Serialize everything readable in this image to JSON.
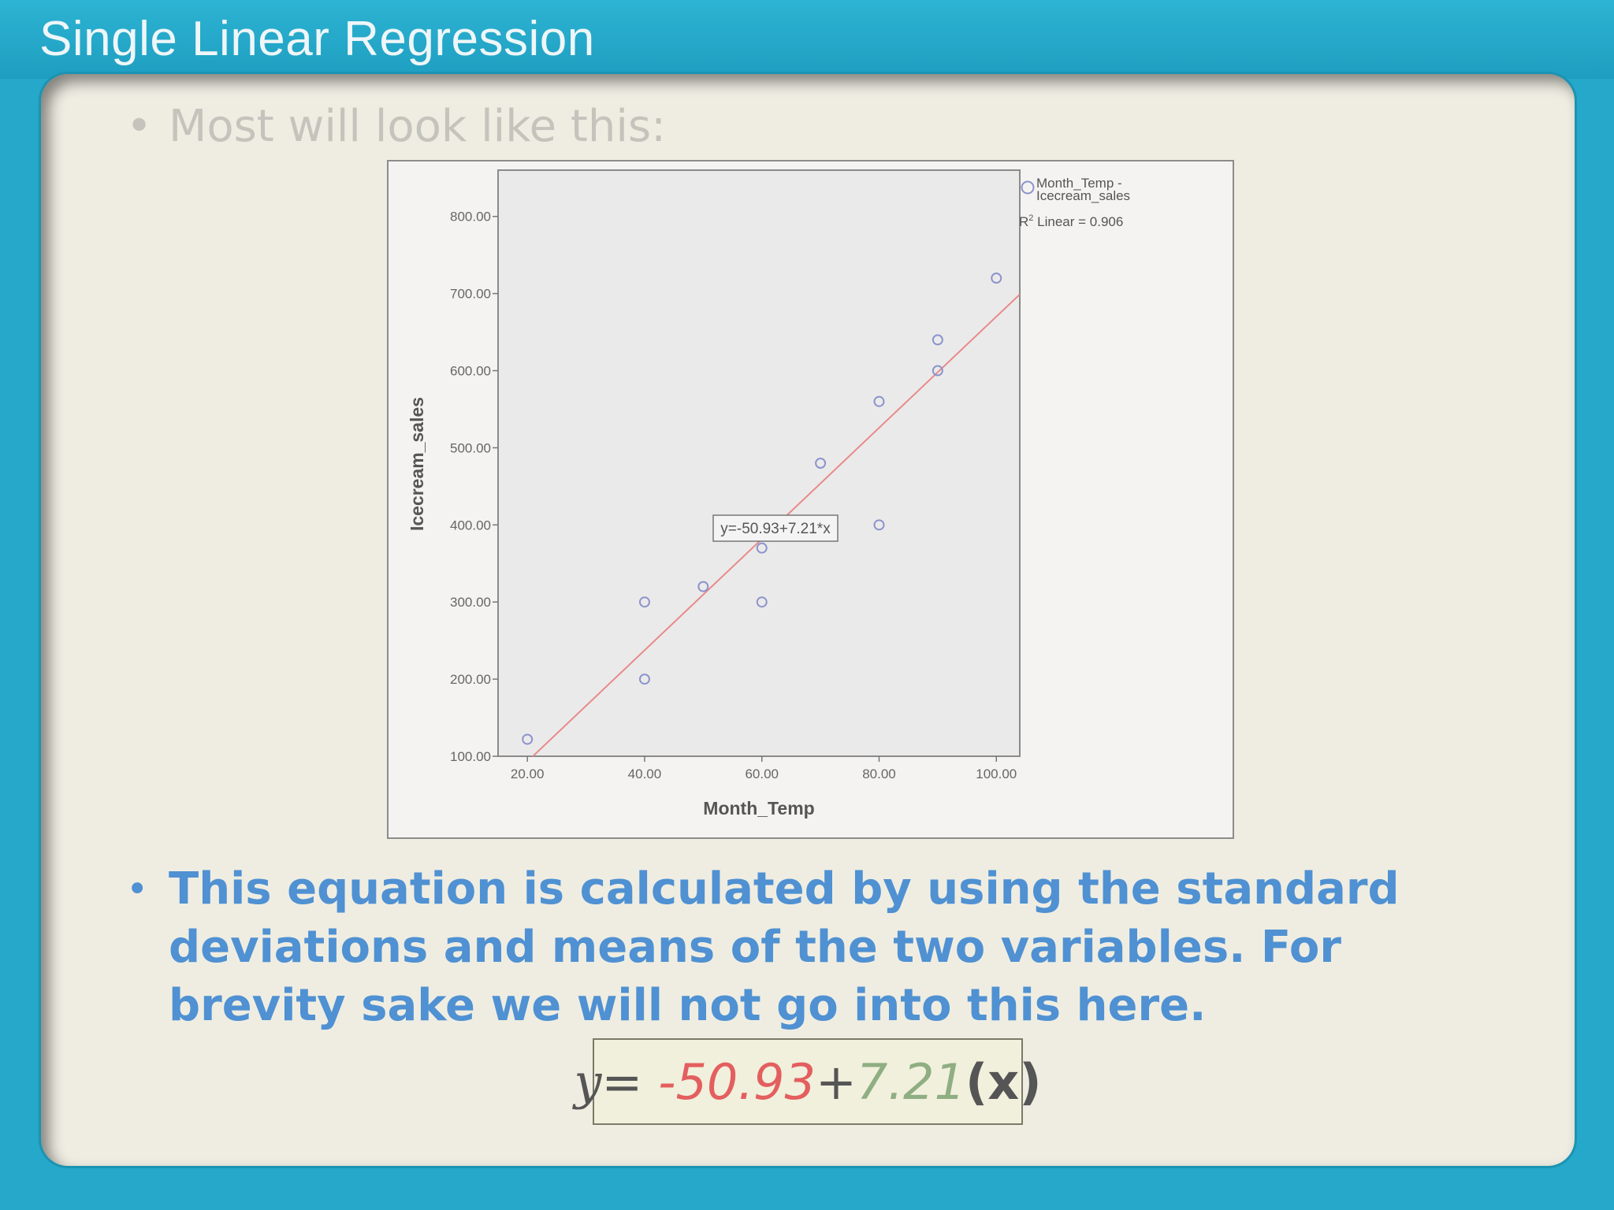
{
  "slide": {
    "title": "Single Linear Regression",
    "bullet1": "Most will look like this:",
    "bullet2": "This equation is calculated by using the standard deviations and means of the two variables.  For brevity sake we will not go into this here.",
    "bullet_glyph": "•"
  },
  "equation": {
    "y": "y",
    "equals": "=",
    "intercept": " -50.93",
    "plus": "+",
    "slope": "7.21",
    "x": "(x)"
  },
  "chart_data": {
    "type": "scatter",
    "xlabel": "Month_Temp",
    "ylabel": "Icecream_sales",
    "xlim": [
      15,
      104
    ],
    "ylim": [
      100,
      860
    ],
    "x_ticks": [
      20,
      40,
      60,
      80,
      100
    ],
    "x_tick_labels": [
      "20.00",
      "40.00",
      "60.00",
      "80.00",
      "100.00"
    ],
    "y_ticks": [
      100,
      200,
      300,
      400,
      500,
      600,
      700,
      800
    ],
    "y_tick_labels": [
      "100.00",
      "200.00",
      "300.00",
      "400.00",
      "500.00",
      "600.00",
      "700.00",
      "800.00"
    ],
    "points": [
      {
        "x": 20,
        "y": 122
      },
      {
        "x": 40,
        "y": 200
      },
      {
        "x": 40,
        "y": 300
      },
      {
        "x": 50,
        "y": 320
      },
      {
        "x": 60,
        "y": 300
      },
      {
        "x": 60,
        "y": 370
      },
      {
        "x": 70,
        "y": 480
      },
      {
        "x": 80,
        "y": 400
      },
      {
        "x": 80,
        "y": 560
      },
      {
        "x": 90,
        "y": 600
      },
      {
        "x": 90,
        "y": 640
      },
      {
        "x": 100,
        "y": 720
      }
    ],
    "fit_line": {
      "intercept": -50.93,
      "slope": 7.21,
      "label": "y=-50.93+7.21*x",
      "color": "#e88a8a"
    },
    "legend": {
      "series_name_line1": "Month_Temp -",
      "series_name_line2": "Icecream_sales",
      "r2_label": "R",
      "r2_sup": "2",
      "r2_text": " Linear = 0.906",
      "placement": "top-right"
    },
    "colors": {
      "marker": "#8b94cc",
      "plot_bg": "#ebeaea",
      "fit": "#e88a8a"
    },
    "grid": false
  }
}
